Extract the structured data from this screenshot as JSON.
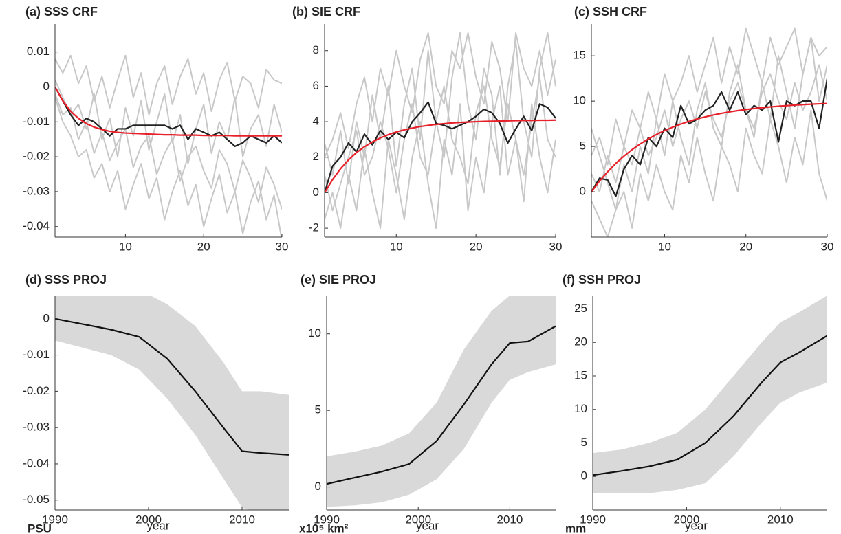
{
  "chart_data": [
    {
      "type": "line",
      "title": "(a) SSS CRF",
      "x": [
        1,
        2,
        3,
        4,
        5,
        6,
        7,
        8,
        9,
        10,
        11,
        12,
        13,
        14,
        15,
        16,
        17,
        18,
        19,
        20,
        21,
        22,
        23,
        24,
        25,
        26,
        27,
        28,
        29,
        30
      ],
      "xlim": [
        1,
        30
      ],
      "xticks": [
        10,
        20,
        30
      ],
      "ylim": [
        -0.043,
        0.018
      ],
      "yticks": [
        0.01,
        0,
        -0.01,
        -0.02,
        -0.03,
        -0.04
      ],
      "series": [
        {
          "color": "#c8c8c8",
          "values": [
            0.002,
            -0.003,
            -0.008,
            -0.005,
            -0.012,
            -0.002,
            -0.015,
            -0.009,
            -0.02,
            -0.006,
            -0.014,
            -0.004,
            -0.018,
            -0.01,
            -0.002,
            -0.016,
            -0.008,
            -0.022,
            -0.012,
            -0.005,
            -0.019,
            -0.01,
            -0.015,
            -0.003,
            -0.02,
            -0.012,
            -0.008,
            -0.017,
            -0.005,
            -0.013
          ]
        },
        {
          "color": "#c8c8c8",
          "values": [
            -0.003,
            -0.01,
            -0.014,
            -0.02,
            -0.018,
            -0.026,
            -0.022,
            -0.03,
            -0.024,
            -0.035,
            -0.028,
            -0.022,
            -0.032,
            -0.026,
            -0.038,
            -0.03,
            -0.024,
            -0.034,
            -0.028,
            -0.04,
            -0.032,
            -0.025,
            -0.036,
            -0.03,
            -0.042,
            -0.033,
            -0.027,
            -0.038,
            -0.031,
            -0.044
          ]
        },
        {
          "color": "#c8c8c8",
          "values": [
            0.008,
            0.004,
            0.009,
            0.001,
            0.006,
            -0.004,
            0.003,
            -0.006,
            0.002,
            0.009,
            -0.003,
            0.004,
            -0.008,
            0.001,
            0.006,
            -0.005,
            0.003,
            0.008,
            -0.002,
            0.004,
            -0.007,
            0.002,
            0.007,
            -0.004,
            0.003,
            0.001,
            -0.006,
            0.005,
            0.002,
            0.001
          ]
        },
        {
          "color": "#c8c8c8",
          "values": [
            -0.002,
            -0.008,
            -0.006,
            -0.015,
            -0.01,
            -0.019,
            -0.013,
            -0.021,
            -0.016,
            -0.012,
            -0.023,
            -0.017,
            -0.014,
            -0.025,
            -0.019,
            -0.015,
            -0.027,
            -0.02,
            -0.017,
            -0.024,
            -0.029,
            -0.018,
            -0.022,
            -0.03,
            -0.021,
            -0.026,
            -0.033,
            -0.023,
            -0.028,
            -0.035
          ]
        },
        {
          "color": "#222222",
          "values": [
            0,
            -0.004,
            -0.008,
            -0.011,
            -0.009,
            -0.01,
            -0.012,
            -0.014,
            -0.012,
            -0.012,
            -0.011,
            -0.011,
            -0.011,
            -0.011,
            -0.011,
            -0.012,
            -0.011,
            -0.015,
            -0.012,
            -0.013,
            -0.014,
            -0.013,
            -0.015,
            -0.017,
            -0.016,
            -0.014,
            -0.015,
            -0.016,
            -0.014,
            -0.016
          ]
        },
        {
          "color": "#e8202a",
          "values": [
            0,
            -0.004,
            -0.007,
            -0.009,
            -0.0105,
            -0.0115,
            -0.0122,
            -0.0127,
            -0.013,
            -0.0132,
            -0.0133,
            -0.0134,
            -0.0135,
            -0.0136,
            -0.0137,
            -0.0137,
            -0.0138,
            -0.0138,
            -0.0138,
            -0.0139,
            -0.0139,
            -0.0139,
            -0.0139,
            -0.014,
            -0.014,
            -0.014,
            -0.014,
            -0.014,
            -0.014,
            -0.014
          ]
        }
      ]
    },
    {
      "type": "line",
      "title": "(b) SIE CRF",
      "x": [
        1,
        2,
        3,
        4,
        5,
        6,
        7,
        8,
        9,
        10,
        11,
        12,
        13,
        14,
        15,
        16,
        17,
        18,
        19,
        20,
        21,
        22,
        23,
        24,
        25,
        26,
        27,
        28,
        29,
        30
      ],
      "xlim": [
        1,
        30
      ],
      "xticks": [
        10,
        20,
        30
      ],
      "ylim": [
        -2.5,
        9.5
      ],
      "yticks": [
        -2,
        0,
        2,
        4,
        6,
        8
      ],
      "series": [
        {
          "color": "#c8c8c8",
          "values": [
            2.8,
            1,
            3.5,
            0.5,
            4,
            2,
            5.5,
            3,
            6,
            1.5,
            5,
            7,
            3,
            8,
            4,
            2,
            6.5,
            9,
            5,
            3,
            7,
            5.5,
            1,
            6,
            8.5,
            4,
            2,
            7,
            9,
            6
          ]
        },
        {
          "color": "#c8c8c8",
          "values": [
            -1.5,
            0,
            -2,
            1,
            -1,
            2.5,
            0,
            -2,
            3,
            1,
            -1.5,
            2,
            4,
            0.5,
            -2,
            3,
            1,
            5,
            -1,
            2,
            0,
            4,
            6,
            1,
            3,
            -0.5,
            5,
            2,
            0,
            3
          ]
        },
        {
          "color": "#c8c8c8",
          "values": [
            2,
            3,
            4.5,
            2.5,
            5,
            6.5,
            4,
            7,
            5.5,
            8,
            6,
            4.5,
            7.5,
            9,
            6,
            5,
            8,
            7,
            9,
            6.5,
            5,
            8.5,
            7,
            4,
            9,
            7,
            6,
            8,
            5.5,
            7.5
          ]
        },
        {
          "color": "#c8c8c8",
          "values": [
            1,
            -1,
            0.5,
            2,
            3.5,
            1,
            2,
            4,
            2.5,
            0,
            3,
            5,
            2,
            1,
            4,
            6,
            3,
            2,
            0.5,
            4.5,
            6,
            3,
            1.5,
            5,
            3,
            1,
            4,
            6.5,
            3,
            2
          ]
        },
        {
          "color": "#222222",
          "values": [
            0,
            1.5,
            2,
            2.8,
            2.3,
            3.3,
            2.7,
            3.5,
            3,
            3.4,
            3.1,
            4,
            4.5,
            5.1,
            3.9,
            3.8,
            3.6,
            3.8,
            4,
            4.3,
            4.7,
            4.5,
            3.9,
            2.8,
            3.6,
            4.3,
            3.5,
            5,
            4.8,
            4.2
          ]
        },
        {
          "color": "#e8202a",
          "values": [
            0,
            0.74,
            1.35,
            1.85,
            2.26,
            2.59,
            2.86,
            3.09,
            3.27,
            3.42,
            3.54,
            3.64,
            3.73,
            3.79,
            3.85,
            3.89,
            3.93,
            3.96,
            3.98,
            4,
            4.02,
            4.03,
            4.04,
            4.05,
            4.06,
            4.07,
            4.07,
            4.08,
            4.08,
            4.09
          ]
        }
      ]
    },
    {
      "type": "line",
      "title": "(c) SSH CRF",
      "x": [
        1,
        2,
        3,
        4,
        5,
        6,
        7,
        8,
        9,
        10,
        11,
        12,
        13,
        14,
        15,
        16,
        17,
        18,
        19,
        20,
        21,
        22,
        23,
        24,
        25,
        26,
        27,
        28,
        29,
        30
      ],
      "xlim": [
        1,
        30
      ],
      "xticks": [
        10,
        20,
        30
      ],
      "ylim": [
        -5,
        18.5
      ],
      "yticks": [
        0,
        5,
        10,
        15
      ],
      "series": [
        {
          "color": "#c8c8c8",
          "values": [
            7,
            4,
            1,
            -2,
            3,
            0,
            5,
            2,
            8,
            4,
            10,
            6,
            3,
            9,
            12,
            7,
            5,
            11,
            14,
            9,
            6,
            12,
            8,
            15,
            11,
            7,
            13,
            17,
            10,
            14
          ]
        },
        {
          "color": "#c8c8c8",
          "values": [
            -1,
            -3,
            -5,
            -2,
            0,
            -4,
            2,
            -1,
            3,
            0,
            -2,
            4,
            1,
            6,
            2,
            -1,
            5,
            3,
            0,
            7,
            4,
            2,
            8,
            5,
            1,
            6,
            3,
            9,
            2,
            -1
          ]
        },
        {
          "color": "#c8c8c8",
          "values": [
            4,
            6,
            3,
            8,
            5,
            9,
            7,
            11,
            8,
            13,
            10,
            12,
            15,
            11,
            14,
            17,
            12,
            16,
            13,
            18,
            15,
            12,
            17,
            14,
            16,
            18,
            13,
            17,
            15,
            16
          ]
        },
        {
          "color": "#c8c8c8",
          "values": [
            2,
            0,
            4,
            1,
            5,
            3,
            7,
            4,
            6,
            9,
            5,
            8,
            10,
            7,
            11,
            8,
            6,
            10,
            12,
            9,
            7,
            11,
            13,
            10,
            8,
            12,
            9,
            11,
            14,
            10
          ]
        },
        {
          "color": "#222222",
          "values": [
            0,
            1.5,
            1.3,
            -0.5,
            2.5,
            4,
            3,
            6,
            5,
            7,
            6,
            9.5,
            7.5,
            8,
            9,
            9.5,
            11,
            9,
            11,
            8.5,
            9.5,
            9,
            10,
            5.5,
            10,
            9.5,
            10,
            10,
            7,
            12.5
          ]
        },
        {
          "color": "#e8202a",
          "values": [
            0,
            1.18,
            2.21,
            3.13,
            3.93,
            4.65,
            5.28,
            5.83,
            6.32,
            6.75,
            7.13,
            7.47,
            7.77,
            8.03,
            8.26,
            8.47,
            8.65,
            8.81,
            8.95,
            9.07,
            9.18,
            9.28,
            9.36,
            9.43,
            9.5,
            9.56,
            9.61,
            9.66,
            9.7,
            9.73
          ]
        }
      ]
    },
    {
      "type": "line",
      "title": "(d) SSS PROJ",
      "unit_label": "PSU",
      "xlabel": "year",
      "x": [
        1990,
        1993,
        1996,
        1999,
        2002,
        2005,
        2008,
        2010,
        2012,
        2015
      ],
      "xlim": [
        1990,
        2015
      ],
      "xticks": [
        1990,
        2000,
        2010
      ],
      "ylim": [
        -0.0527,
        0.0064
      ],
      "yticks": [
        0,
        -0.01,
        -0.02,
        -0.03,
        -0.04,
        -0.05
      ],
      "band": {
        "color": "#d9d9d9",
        "upper": [
          0.008,
          0.008,
          0.008,
          0.008,
          0.004,
          -0.002,
          -0.012,
          -0.02,
          -0.02,
          -0.021
        ],
        "lower": [
          -0.006,
          -0.008,
          -0.01,
          -0.014,
          -0.022,
          -0.032,
          -0.044,
          -0.052,
          -0.054,
          -0.054
        ]
      },
      "series": [
        {
          "color": "#111111",
          "values": [
            0,
            -0.0015,
            -0.003,
            -0.005,
            -0.011,
            -0.02,
            -0.03,
            -0.0365,
            -0.037,
            -0.0375
          ]
        }
      ]
    },
    {
      "type": "line",
      "title": "(e) SIE PROJ",
      "unit_label": "x10⁵ km²",
      "xlabel": "year",
      "x": [
        1990,
        1993,
        1996,
        1999,
        2002,
        2005,
        2008,
        2010,
        2012,
        2015
      ],
      "xlim": [
        1990,
        2015
      ],
      "xticks": [
        1990,
        2000,
        2010
      ],
      "ylim": [
        -1.5,
        12.5
      ],
      "yticks": [
        0,
        5,
        10
      ],
      "band": {
        "color": "#d9d9d9",
        "upper": [
          2,
          2.3,
          2.7,
          3.5,
          5.5,
          9,
          11.5,
          12.5,
          13,
          13.5
        ],
        "lower": [
          -1.3,
          -1.2,
          -1,
          -0.5,
          0.5,
          2.5,
          5.5,
          7,
          7.5,
          8
        ]
      },
      "series": [
        {
          "color": "#111111",
          "values": [
            0.2,
            0.6,
            1,
            1.5,
            3,
            5.4,
            8,
            9.4,
            9.5,
            10.5
          ]
        }
      ]
    },
    {
      "type": "line",
      "title": "(f) SSH PROJ",
      "unit_label": "mm",
      "xlabel": "year",
      "x": [
        1990,
        1993,
        1996,
        1999,
        2002,
        2005,
        2008,
        2010,
        2012,
        2015
      ],
      "xlim": [
        1990,
        2015
      ],
      "xticks": [
        1990,
        2000,
        2010
      ],
      "ylim": [
        -5,
        27
      ],
      "yticks": [
        0,
        5,
        10,
        15,
        20,
        25
      ],
      "band": {
        "color": "#d9d9d9",
        "upper": [
          3.5,
          4,
          5,
          6.5,
          10,
          15,
          20,
          23,
          24.5,
          27
        ],
        "lower": [
          -2.5,
          -2.5,
          -2.5,
          -2,
          -1,
          3,
          8,
          11,
          12.5,
          14
        ]
      },
      "series": [
        {
          "color": "#111111",
          "values": [
            0.2,
            0.8,
            1.5,
            2.5,
            5,
            9,
            14,
            17,
            18.5,
            21
          ]
        }
      ]
    }
  ]
}
